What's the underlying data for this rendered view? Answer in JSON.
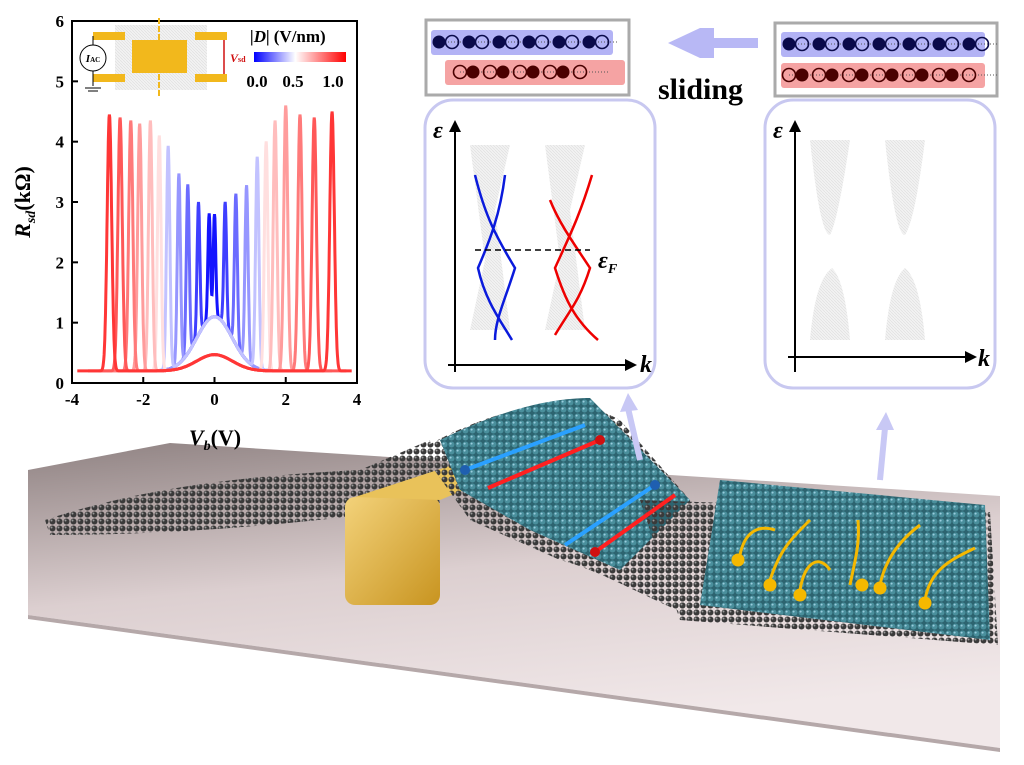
{
  "chart_data": {
    "type": "line",
    "xlabel": "V_b (V)",
    "xlabel_main": "V",
    "xlabel_sub": "b",
    "xlabel_unit": "(V)",
    "ylabel_main": "R",
    "ylabel_sub": "sd",
    "ylabel_unit": "(kΩ)",
    "xlim": [
      -4,
      4
    ],
    "ylim": [
      0,
      6
    ],
    "xticks": [
      "-4",
      "-2",
      "0",
      "2",
      "4"
    ],
    "yticks": [
      "0",
      "1",
      "2",
      "3",
      "4",
      "5",
      "6"
    ],
    "colorbar": {
      "label": "|D| (V/nm)",
      "label_abs": "|D|",
      "label_unit": "(V/nm)",
      "ticks": [
        "0.0",
        "0.5",
        "1.0"
      ],
      "range": [
        0,
        1.1
      ],
      "colors": [
        "#0000ff",
        "#ffffff",
        "#ff0000"
      ]
    },
    "series": [
      {
        "D": 0.0,
        "peaks": [
          [
            -0.15,
            2.15
          ],
          [
            0.0,
            2.1
          ]
        ]
      },
      {
        "D": 0.1,
        "peaks": [
          [
            -0.45,
            2.6
          ],
          [
            0.3,
            2.45
          ]
        ]
      },
      {
        "D": 0.2,
        "peaks": [
          [
            -0.75,
            3.2
          ],
          [
            0.6,
            2.9
          ]
        ]
      },
      {
        "D": 0.3,
        "peaks": [
          [
            -1.0,
            3.55
          ],
          [
            0.9,
            3.3
          ]
        ]
      },
      {
        "D": 0.4,
        "peaks": [
          [
            -1.3,
            4.1
          ],
          [
            1.2,
            3.9
          ]
        ]
      },
      {
        "D": 0.5,
        "peaks": [
          [
            -1.55,
            4.3
          ],
          [
            1.45,
            4.2
          ]
        ]
      },
      {
        "D": 0.6,
        "peaks": [
          [
            -1.8,
            4.55
          ],
          [
            1.7,
            4.55
          ]
        ]
      },
      {
        "D": 0.7,
        "peaks": [
          [
            -2.1,
            4.5
          ],
          [
            2.0,
            4.8
          ]
        ]
      },
      {
        "D": 0.8,
        "peaks": [
          [
            -2.35,
            4.55
          ],
          [
            2.4,
            4.65
          ]
        ]
      },
      {
        "D": 0.9,
        "peaks": [
          [
            -2.65,
            4.6
          ],
          [
            2.8,
            4.6
          ]
        ]
      },
      {
        "D": 1.0,
        "peaks": [
          [
            -2.95,
            4.65
          ],
          [
            3.3,
            4.7
          ]
        ]
      }
    ]
  },
  "inset": {
    "source_label": "I",
    "source_sub": "AC",
    "voltage_label": "V",
    "voltage_sub": "sd"
  },
  "stacking": {
    "sliding_label": "sliding"
  },
  "band_panels": {
    "energy_axis": "ε",
    "momentum_axis": "k",
    "fermi_label": "ε",
    "fermi_sub": "F"
  },
  "colors": {
    "blue_layer": "#b3b3f5",
    "red_layer": "#f5a3a3",
    "arrow": "#c8c8f5",
    "gold": "#e6b43c",
    "atom_teal": "#3d7f8c",
    "atom_gray": "#3a3a3a"
  }
}
